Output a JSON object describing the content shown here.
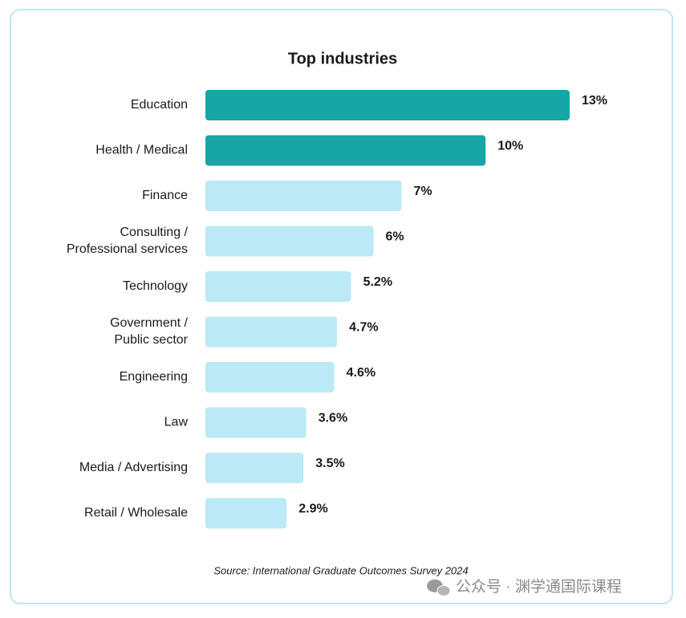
{
  "chart_data": {
    "type": "bar",
    "orientation": "horizontal",
    "title": "Top industries",
    "categories": [
      [
        "Education"
      ],
      [
        "Health / Medical"
      ],
      [
        "Finance"
      ],
      [
        "Consulting /",
        "Professional services"
      ],
      [
        "Technology"
      ],
      [
        "Government /",
        "Public sector"
      ],
      [
        "Engineering"
      ],
      [
        "Law"
      ],
      [
        "Media / Advertising"
      ],
      [
        "Retail / Wholesale"
      ]
    ],
    "values": [
      13,
      10,
      7,
      6,
      5.2,
      4.7,
      4.6,
      3.6,
      3.5,
      2.9
    ],
    "value_labels": [
      "13%",
      "10%",
      "7%",
      "6%",
      "5.2%",
      "4.7%",
      "4.6%",
      "3.6%",
      "3.5%",
      "2.9%"
    ],
    "colors": [
      "#17a5a5",
      "#17a5a5",
      "#bbe9f6",
      "#bbe9f6",
      "#bbe9f6",
      "#bbe9f6",
      "#bbe9f6",
      "#bbe9f6",
      "#bbe9f6",
      "#bbe9f6"
    ],
    "source": "Source: International Graduate Outcomes Survey 2024",
    "watermark": "公众号 · 渊学通国际课程"
  }
}
